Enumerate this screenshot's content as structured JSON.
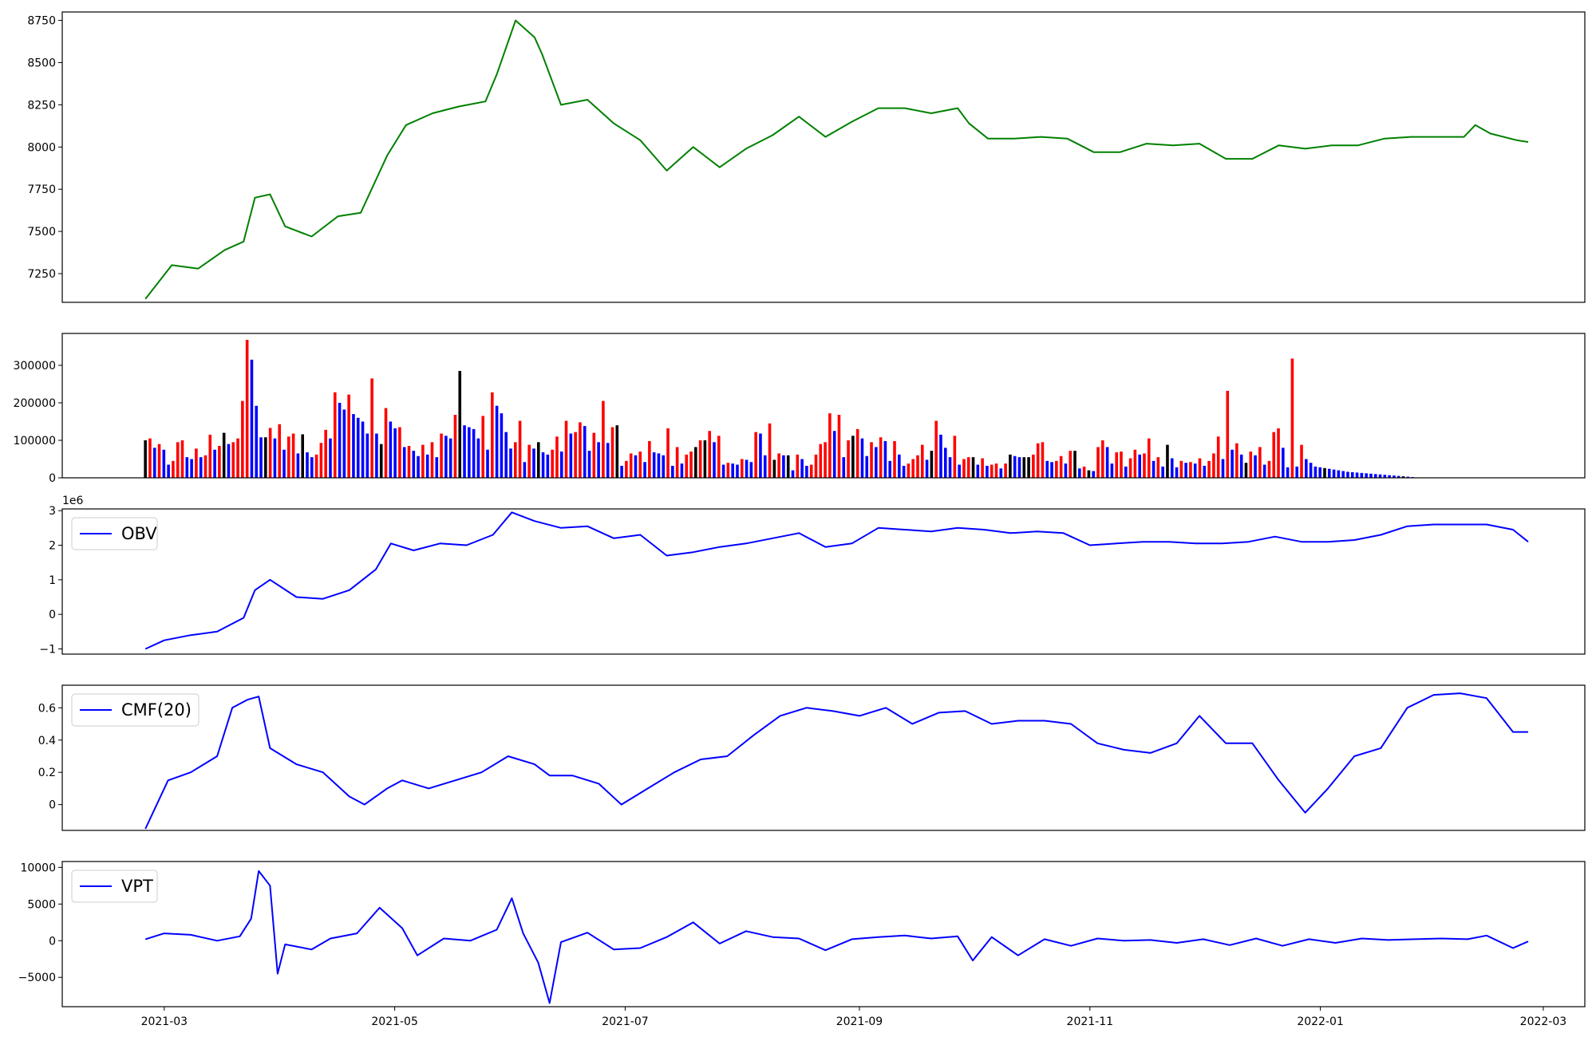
{
  "chart_data": [
    {
      "type": "line",
      "title": "",
      "xlabel": "",
      "ylabel": "",
      "ylim": [
        7080,
        8800
      ],
      "yticks": [
        7250,
        7500,
        7750,
        8000,
        8250,
        8500,
        8750
      ],
      "show_xticks": false,
      "color": "#008000",
      "x_range": [
        "2021-02-02",
        "2022-03-12"
      ],
      "series": [
        {
          "x": [
            "2021-02-24",
            "2021-03-03",
            "2021-03-10",
            "2021-03-17",
            "2021-03-22",
            "2021-03-25",
            "2021-03-29",
            "2021-04-02",
            "2021-04-09",
            "2021-04-16",
            "2021-04-22",
            "2021-04-29",
            "2021-05-04",
            "2021-05-11",
            "2021-05-18",
            "2021-05-25",
            "2021-05-28",
            "2021-06-02",
            "2021-06-07",
            "2021-06-09",
            "2021-06-14",
            "2021-06-21",
            "2021-06-28",
            "2021-07-05",
            "2021-07-12",
            "2021-07-19",
            "2021-07-26",
            "2021-08-02",
            "2021-08-09",
            "2021-08-16",
            "2021-08-23",
            "2021-08-30",
            "2021-09-06",
            "2021-09-13",
            "2021-09-20",
            "2021-09-27",
            "2021-09-30",
            "2021-10-05",
            "2021-10-12",
            "2021-10-19",
            "2021-10-26",
            "2021-11-02",
            "2021-11-09",
            "2021-11-16",
            "2021-11-23",
            "2021-11-30",
            "2021-12-07",
            "2021-12-14",
            "2021-12-21",
            "2021-12-28",
            "2022-01-04",
            "2022-01-11",
            "2022-01-18",
            "2022-01-25",
            "2022-02-01",
            "2022-02-08",
            "2022-02-11",
            "2022-02-15",
            "2022-02-22",
            "2022-02-25"
          ],
          "y": [
            7100,
            7300,
            7280,
            7390,
            7440,
            7700,
            7720,
            7530,
            7470,
            7590,
            7610,
            7950,
            8130,
            8200,
            8240,
            8270,
            8430,
            8750,
            8650,
            8550,
            8250,
            8280,
            8140,
            8040,
            7860,
            8000,
            7880,
            7990,
            8070,
            8180,
            8060,
            8150,
            8230,
            8230,
            8200,
            8230,
            8140,
            8050,
            8050,
            8060,
            8050,
            7970,
            7970,
            8020,
            8010,
            8020,
            7930,
            7930,
            8010,
            7990,
            8010,
            8010,
            8050,
            8060,
            8060,
            8060,
            8130,
            8080,
            8040,
            8030
          ]
        }
      ]
    },
    {
      "type": "bar",
      "title": "",
      "xlabel": "",
      "ylabel": "",
      "ylim": [
        0,
        385000
      ],
      "yticks": [
        0,
        100000,
        200000,
        300000
      ],
      "show_xticks": false,
      "bar_colors_legend": {
        "up": "#ff0000",
        "down": "#0000ff",
        "flat": "#000000"
      },
      "n_bars": 300,
      "series": [
        {
          "name": "",
          "values": [
            100000,
            105000,
            80000,
            90000,
            75000,
            35000,
            45000,
            95000,
            100000,
            55000,
            50000,
            78000,
            55000,
            60000,
            115000,
            75000,
            85000,
            120000,
            90000,
            95000,
            105000,
            205000,
            368000,
            315000,
            192000,
            108000,
            108000,
            133000,
            105000,
            143000,
            75000,
            110000,
            118000,
            65000,
            116000,
            68000,
            55000,
            62000,
            93000,
            128000,
            105000,
            228000,
            200000,
            182000,
            222000,
            170000,
            160000,
            150000,
            118000,
            265000,
            118000,
            90000,
            186000,
            150000,
            132000,
            135000,
            82000,
            85000,
            72000,
            58000,
            88000,
            62000,
            95000,
            55000,
            118000,
            112000,
            105000,
            168000,
            285000,
            140000,
            135000,
            130000,
            105000,
            165000,
            75000,
            228000,
            192000,
            172000,
            122000,
            78000,
            95000,
            152000,
            42000,
            88000,
            78000,
            95000,
            68000,
            62000,
            75000,
            110000,
            70000,
            152000,
            118000,
            122000,
            148000,
            138000,
            72000,
            120000,
            95000,
            205000,
            93000,
            135000,
            140000,
            32000,
            45000,
            65000,
            60000,
            70000,
            42000,
            98000,
            68000,
            65000,
            60000,
            132000,
            32000,
            82000,
            38000,
            62000,
            70000,
            82000,
            100000,
            100000,
            125000,
            95000,
            112000,
            35000,
            40000,
            38000,
            35000,
            50000,
            48000,
            42000,
            122000,
            118000,
            60000,
            145000,
            48000,
            65000,
            60000,
            60000,
            20000,
            62000,
            50000,
            32000,
            35000,
            62000,
            90000,
            95000,
            172000,
            125000,
            168000,
            55000,
            100000,
            112000,
            130000,
            105000,
            58000,
            95000,
            82000,
            108000,
            98000,
            45000,
            98000,
            62000,
            32000,
            38000,
            50000,
            60000,
            88000,
            48000,
            72000,
            152000,
            115000,
            80000,
            55000,
            112000,
            35000,
            50000,
            55000,
            55000,
            35000,
            52000,
            32000,
            35000,
            38000,
            25000,
            38000,
            62000,
            58000,
            55000,
            55000,
            55000,
            62000,
            92000,
            95000,
            45000,
            42000,
            45000,
            58000,
            38000,
            72000,
            72000,
            25000,
            30000,
            20000,
            18000,
            82000,
            100000,
            82000,
            38000,
            68000,
            70000,
            30000,
            52000,
            75000,
            62000,
            65000,
            105000,
            45000,
            55000,
            30000,
            88000,
            52000,
            28000,
            45000,
            40000,
            42000,
            38000,
            52000,
            32000,
            45000,
            65000,
            110000,
            50000,
            232000,
            75000,
            92000,
            62000,
            40000,
            70000,
            60000,
            82000,
            35000,
            45000,
            122000,
            132000,
            80000,
            28000,
            318000,
            30000,
            88000,
            50000,
            40000,
            30000,
            28000,
            26000,
            24000,
            22000,
            20000,
            18000,
            16000,
            15000,
            14000,
            13000,
            12000,
            11000,
            10000,
            9000,
            8000,
            7000,
            6000,
            5000,
            4000,
            3000,
            2000,
            1000,
            500,
            300,
            200,
            100
          ],
          "colors": []
        }
      ]
    },
    {
      "type": "line",
      "title": "",
      "xlabel": "",
      "ylabel": "",
      "axis_offset_label": "1e6",
      "ylim": [
        -1.15,
        3.05
      ],
      "yticks": [
        -1,
        0,
        1,
        2,
        3
      ],
      "show_xticks": false,
      "legend_position": "top-left",
      "series": [
        {
          "name": "OBV",
          "color": "#0000ff",
          "x": [
            "2021-02-24",
            "2021-03-01",
            "2021-03-08",
            "2021-03-15",
            "2021-03-22",
            "2021-03-25",
            "2021-03-29",
            "2021-04-05",
            "2021-04-12",
            "2021-04-19",
            "2021-04-26",
            "2021-04-30",
            "2021-05-06",
            "2021-05-13",
            "2021-05-20",
            "2021-05-27",
            "2021-06-01",
            "2021-06-07",
            "2021-06-14",
            "2021-06-21",
            "2021-06-28",
            "2021-07-05",
            "2021-07-12",
            "2021-07-19",
            "2021-07-26",
            "2021-08-02",
            "2021-08-09",
            "2021-08-16",
            "2021-08-23",
            "2021-08-30",
            "2021-09-06",
            "2021-09-13",
            "2021-09-20",
            "2021-09-27",
            "2021-10-04",
            "2021-10-11",
            "2021-10-18",
            "2021-10-25",
            "2021-11-01",
            "2021-11-08",
            "2021-11-15",
            "2021-11-22",
            "2021-11-29",
            "2021-12-06",
            "2021-12-13",
            "2021-12-20",
            "2021-12-27",
            "2022-01-03",
            "2022-01-10",
            "2022-01-17",
            "2022-01-24",
            "2022-01-31",
            "2022-02-07",
            "2022-02-14",
            "2022-02-21",
            "2022-02-25"
          ],
          "y": [
            -1.0,
            -0.75,
            -0.6,
            -0.5,
            -0.1,
            0.7,
            1.0,
            0.5,
            0.45,
            0.7,
            1.3,
            2.05,
            1.85,
            2.05,
            2.0,
            2.3,
            2.95,
            2.7,
            2.5,
            2.55,
            2.2,
            2.3,
            1.7,
            1.8,
            1.95,
            2.05,
            2.2,
            2.35,
            1.95,
            2.05,
            2.5,
            2.45,
            2.4,
            2.5,
            2.45,
            2.35,
            2.4,
            2.35,
            2.0,
            2.05,
            2.1,
            2.1,
            2.05,
            2.05,
            2.1,
            2.25,
            2.1,
            2.1,
            2.15,
            2.3,
            2.55,
            2.6,
            2.6,
            2.6,
            2.45,
            2.1
          ]
        }
      ]
    },
    {
      "type": "line",
      "title": "",
      "xlabel": "",
      "ylabel": "",
      "ylim": [
        -0.16,
        0.74
      ],
      "yticks": [
        0.0,
        0.2,
        0.4,
        0.6
      ],
      "show_xticks": false,
      "legend_position": "top-left",
      "series": [
        {
          "name": "CMF(20)",
          "color": "#0000ff",
          "x": [
            "2021-02-24",
            "2021-03-02",
            "2021-03-08",
            "2021-03-15",
            "2021-03-19",
            "2021-03-23",
            "2021-03-26",
            "2021-03-29",
            "2021-04-05",
            "2021-04-12",
            "2021-04-19",
            "2021-04-23",
            "2021-04-29",
            "2021-05-03",
            "2021-05-10",
            "2021-05-17",
            "2021-05-24",
            "2021-05-31",
            "2021-06-07",
            "2021-06-11",
            "2021-06-17",
            "2021-06-24",
            "2021-06-30",
            "2021-07-07",
            "2021-07-14",
            "2021-07-21",
            "2021-07-28",
            "2021-08-04",
            "2021-08-11",
            "2021-08-18",
            "2021-08-25",
            "2021-09-01",
            "2021-09-08",
            "2021-09-15",
            "2021-09-22",
            "2021-09-29",
            "2021-10-06",
            "2021-10-13",
            "2021-10-20",
            "2021-10-27",
            "2021-11-03",
            "2021-11-10",
            "2021-11-17",
            "2021-11-24",
            "2021-11-30",
            "2021-12-07",
            "2021-12-14",
            "2021-12-21",
            "2021-12-28",
            "2022-01-03",
            "2022-01-10",
            "2022-01-17",
            "2022-01-24",
            "2022-01-31",
            "2022-02-07",
            "2022-02-14",
            "2022-02-21",
            "2022-02-25"
          ],
          "y": [
            -0.15,
            0.15,
            0.2,
            0.3,
            0.6,
            0.65,
            0.67,
            0.35,
            0.25,
            0.2,
            0.05,
            0.0,
            0.1,
            0.15,
            0.1,
            0.15,
            0.2,
            0.3,
            0.25,
            0.18,
            0.18,
            0.13,
            0.0,
            0.1,
            0.2,
            0.28,
            0.3,
            0.43,
            0.55,
            0.6,
            0.58,
            0.55,
            0.6,
            0.5,
            0.57,
            0.58,
            0.5,
            0.52,
            0.52,
            0.5,
            0.38,
            0.34,
            0.32,
            0.38,
            0.55,
            0.38,
            0.38,
            0.15,
            -0.05,
            0.1,
            0.3,
            0.35,
            0.6,
            0.68,
            0.69,
            0.66,
            0.45,
            0.45
          ]
        }
      ]
    },
    {
      "type": "line",
      "title": "",
      "xlabel": "",
      "ylabel": "",
      "ylim": [
        -9000,
        10800
      ],
      "yticks": [
        -5000,
        0,
        5000,
        10000
      ],
      "xticks": [
        "2021-03",
        "2021-05",
        "2021-07",
        "2021-09",
        "2021-11",
        "2022-01",
        "2022-03"
      ],
      "legend_position": "top-left",
      "series": [
        {
          "name": "VPT",
          "color": "#0000ff",
          "x": [
            "2021-02-24",
            "2021-03-01",
            "2021-03-08",
            "2021-03-15",
            "2021-03-21",
            "2021-03-24",
            "2021-03-26",
            "2021-03-29",
            "2021-03-31",
            "2021-04-02",
            "2021-04-09",
            "2021-04-14",
            "2021-04-21",
            "2021-04-27",
            "2021-05-03",
            "2021-05-07",
            "2021-05-14",
            "2021-05-21",
            "2021-05-28",
            "2021-06-01",
            "2021-06-04",
            "2021-06-08",
            "2021-06-11",
            "2021-06-14",
            "2021-06-21",
            "2021-06-28",
            "2021-07-05",
            "2021-07-12",
            "2021-07-19",
            "2021-07-26",
            "2021-08-02",
            "2021-08-09",
            "2021-08-16",
            "2021-08-23",
            "2021-08-30",
            "2021-09-06",
            "2021-09-13",
            "2021-09-20",
            "2021-09-27",
            "2021-10-01",
            "2021-10-06",
            "2021-10-13",
            "2021-10-20",
            "2021-10-27",
            "2021-11-03",
            "2021-11-10",
            "2021-11-17",
            "2021-11-24",
            "2021-12-01",
            "2021-12-08",
            "2021-12-15",
            "2021-12-22",
            "2021-12-29",
            "2022-01-05",
            "2022-01-12",
            "2022-01-19",
            "2022-01-26",
            "2022-02-02",
            "2022-02-09",
            "2022-02-14",
            "2022-02-21",
            "2022-02-25"
          ],
          "y": [
            200,
            1000,
            800,
            0,
            600,
            3000,
            9500,
            7500,
            -4500,
            -500,
            -1200,
            300,
            1000,
            4500,
            1700,
            -2000,
            300,
            0,
            1500,
            5800,
            1000,
            -3000,
            -8500,
            -200,
            1100,
            -1200,
            -1000,
            500,
            2500,
            -400,
            1300,
            500,
            300,
            -1300,
            200,
            500,
            700,
            300,
            600,
            -2700,
            500,
            -2000,
            200,
            -700,
            300,
            0,
            100,
            -300,
            200,
            -600,
            300,
            -700,
            200,
            -300,
            300,
            100,
            200,
            300,
            200,
            700,
            -1000,
            -100
          ]
        }
      ]
    }
  ]
}
